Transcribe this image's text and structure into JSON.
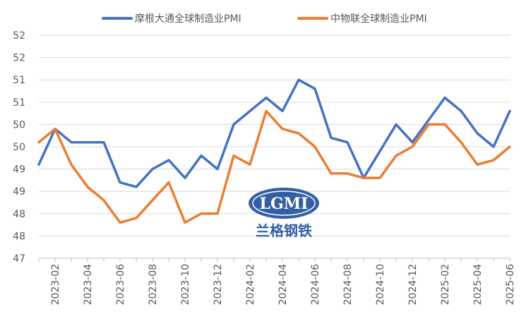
{
  "chart_data": {
    "type": "line",
    "title": "",
    "xlabel": "",
    "ylabel": "",
    "y_tick_labels": [
      "52",
      "52",
      "51",
      "51",
      "50",
      "50",
      "49",
      "49",
      "48",
      "48",
      "47"
    ],
    "ylim": [
      47,
      52
    ],
    "x": [
      "2023-01",
      "2023-02",
      "2023-03",
      "2023-04",
      "2023-05",
      "2023-06",
      "2023-07",
      "2023-08",
      "2023-09",
      "2023-10",
      "2023-11",
      "2023-12",
      "2024-01",
      "2024-02",
      "2024-03",
      "2024-04",
      "2024-05",
      "2024-06",
      "2024-07",
      "2024-08",
      "2024-09",
      "2024-10",
      "2024-11",
      "2024-12",
      "2025-01",
      "2025-02",
      "2025-03",
      "2025-04",
      "2025-05",
      "2025-06"
    ],
    "x_tick_labels": [
      "2023-02",
      "2023-04",
      "2023-06",
      "2023-08",
      "2023-10",
      "2023-12",
      "2024-02",
      "2024-04",
      "2024-06",
      "2024-08",
      "2024-10",
      "2024-12",
      "2025-02",
      "2025-04",
      "2025-06"
    ],
    "grid": true,
    "legend_position": "top",
    "series": [
      {
        "name": "摩根大通全球制造业PMI",
        "color": "#4472C4",
        "values": [
          49.1,
          49.9,
          49.6,
          49.6,
          49.6,
          48.7,
          48.6,
          49.0,
          49.2,
          48.8,
          49.3,
          49.0,
          50.0,
          50.3,
          50.6,
          50.3,
          51.0,
          50.8,
          49.7,
          49.6,
          48.8,
          49.4,
          50.0,
          49.6,
          50.1,
          50.6,
          50.3,
          49.8,
          49.5,
          50.3
        ]
      },
      {
        "name": "中物联全球制造业PMI",
        "color": "#ED7D31",
        "values": [
          49.6,
          49.9,
          49.1,
          48.6,
          48.3,
          47.8,
          47.9,
          48.3,
          48.7,
          47.8,
          48.0,
          48.0,
          49.3,
          49.1,
          50.3,
          49.9,
          49.8,
          49.5,
          48.9,
          48.9,
          48.8,
          48.8,
          49.3,
          49.5,
          50.0,
          50.0,
          49.6,
          49.1,
          49.2,
          49.5
        ]
      }
    ]
  },
  "watermark": {
    "logo_text": "LGMI",
    "chinese_text": "兰格钢铁"
  }
}
